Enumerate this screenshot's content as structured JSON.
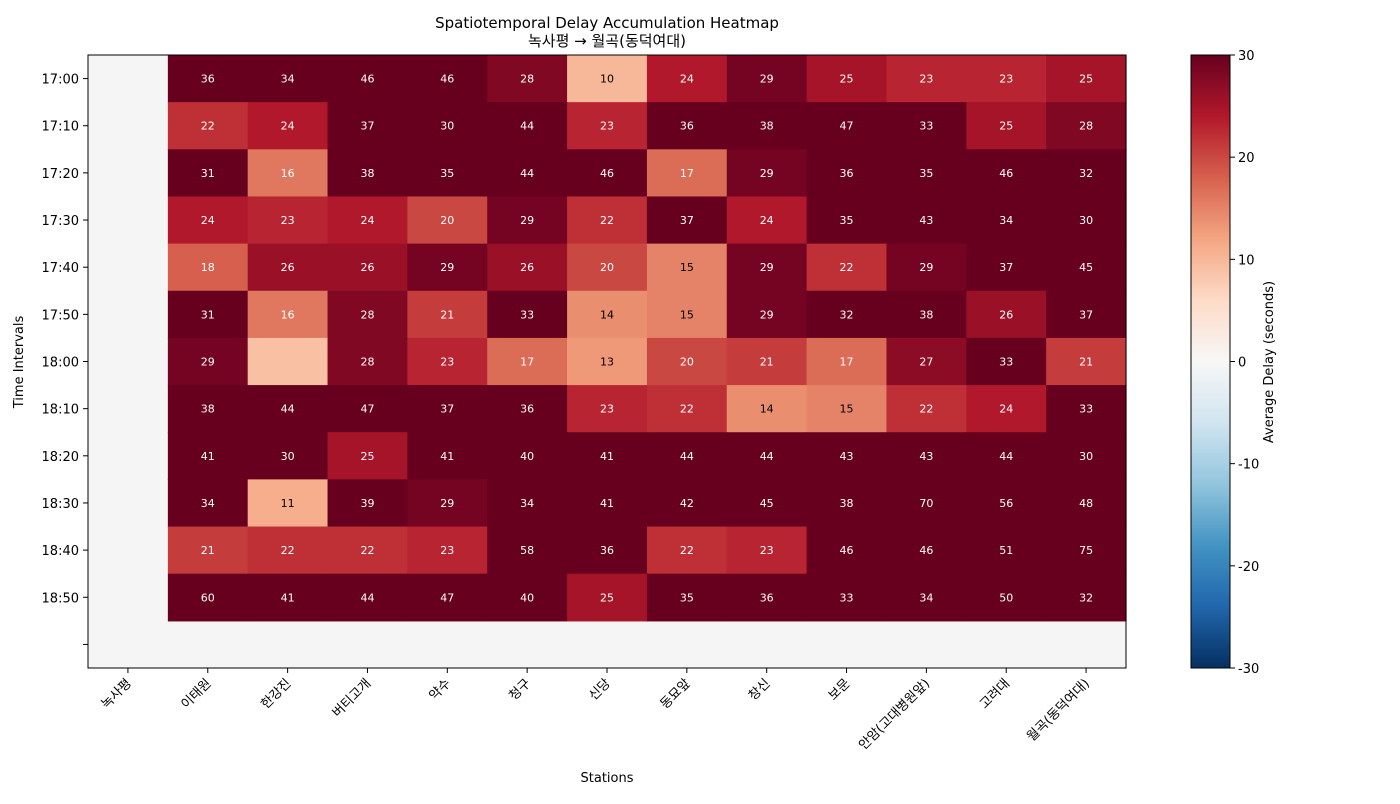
{
  "chart_data": {
    "type": "heatmap",
    "title": "Spatiotemporal Delay Accumulation Heatmap",
    "subtitle": "녹사평 → 월곡(동덕여대)",
    "xlabel": "Stations",
    "ylabel": "Time Intervals",
    "colorbar_label": "Average Delay (seconds)",
    "vmin": -30,
    "vmax": 30,
    "colorbar_ticks": [
      "30",
      "20",
      "10",
      "0",
      "-10",
      "-20",
      "-30"
    ],
    "colormap": "RdBu_r",
    "missing_color": "#f5f5f5",
    "x_labels": [
      "녹사평",
      "이태원",
      "한강진",
      "버티고개",
      "약수",
      "청구",
      "신당",
      "동묘앞",
      "창신",
      "보문",
      "안암(고대병원앞)",
      "고려대",
      "월곡(동덕여대)"
    ],
    "y_labels": [
      "17:00",
      "17:10",
      "17:20",
      "17:30",
      "17:40",
      "17:50",
      "18:00",
      "18:10",
      "18:20",
      "18:30",
      "18:40",
      "18:50",
      ""
    ],
    "values": [
      [
        null,
        36,
        34,
        46,
        46,
        28,
        10,
        24,
        29,
        25,
        23,
        23,
        25
      ],
      [
        null,
        22,
        24,
        37,
        30,
        44,
        23,
        36,
        38,
        47,
        33,
        25,
        28
      ],
      [
        null,
        31,
        16,
        38,
        35,
        44,
        46,
        17,
        29,
        36,
        35,
        46,
        32
      ],
      [
        null,
        24,
        23,
        24,
        20,
        29,
        22,
        37,
        24,
        35,
        43,
        34,
        30
      ],
      [
        null,
        18,
        26,
        26,
        29,
        26,
        20,
        15,
        29,
        22,
        29,
        37,
        45
      ],
      [
        null,
        31,
        16,
        28,
        21,
        33,
        14,
        15,
        29,
        32,
        38,
        26,
        37
      ],
      [
        null,
        29,
        9,
        28,
        23,
        17,
        13,
        20,
        21,
        17,
        27,
        33,
        21
      ],
      [
        null,
        38,
        44,
        47,
        37,
        36,
        23,
        22,
        14,
        15,
        22,
        24,
        33
      ],
      [
        null,
        41,
        30,
        25,
        41,
        40,
        41,
        44,
        44,
        43,
        43,
        44,
        30
      ],
      [
        null,
        34,
        11,
        39,
        29,
        34,
        41,
        42,
        45,
        38,
        70,
        56,
        48
      ],
      [
        null,
        21,
        22,
        22,
        23,
        58,
        36,
        22,
        23,
        46,
        46,
        51,
        75
      ],
      [
        null,
        60,
        41,
        44,
        47,
        40,
        25,
        35,
        36,
        33,
        34,
        50,
        32
      ],
      [
        null,
        null,
        null,
        null,
        null,
        null,
        null,
        null,
        null,
        null,
        null,
        null,
        null
      ]
    ],
    "cell_labels": [
      [
        "",
        "36",
        "34",
        "46",
        "46",
        "28",
        "10",
        "24",
        "29",
        "25",
        "23",
        "23",
        "25"
      ],
      [
        "",
        "22",
        "24",
        "37",
        "30",
        "44",
        "23",
        "36",
        "38",
        "47",
        "33",
        "25",
        "28"
      ],
      [
        "",
        "31",
        "16",
        "38",
        "35",
        "44",
        "46",
        "17",
        "29",
        "36",
        "35",
        "46",
        "32"
      ],
      [
        "",
        "24",
        "23",
        "24",
        "20",
        "29",
        "22",
        "37",
        "24",
        "35",
        "43",
        "34",
        "30"
      ],
      [
        "",
        "18",
        "26",
        "26",
        "29",
        "26",
        "20",
        "15",
        "29",
        "22",
        "29",
        "37",
        "45"
      ],
      [
        "",
        "31",
        "16",
        "28",
        "21",
        "33",
        "14",
        "15",
        "29",
        "32",
        "38",
        "26",
        "37"
      ],
      [
        "",
        "29",
        "",
        "28",
        "23",
        "17",
        "13",
        "20",
        "21",
        "17",
        "27",
        "33",
        "21"
      ],
      [
        "",
        "38",
        "44",
        "47",
        "37",
        "36",
        "23",
        "22",
        "14",
        "15",
        "22",
        "24",
        "33"
      ],
      [
        "",
        "41",
        "30",
        "25",
        "41",
        "40",
        "41",
        "44",
        "44",
        "43",
        "43",
        "44",
        "30"
      ],
      [
        "",
        "34",
        "11",
        "39",
        "29",
        "34",
        "41",
        "42",
        "45",
        "38",
        "70",
        "56",
        "48"
      ],
      [
        "",
        "21",
        "22",
        "22",
        "23",
        "58",
        "36",
        "22",
        "23",
        "46",
        "46",
        "51",
        "75"
      ],
      [
        "",
        "60",
        "41",
        "44",
        "47",
        "40",
        "25",
        "35",
        "36",
        "33",
        "34",
        "50",
        "32"
      ],
      [
        "",
        "",
        "",
        "",
        "",
        "",
        "",
        "",
        "",
        "",
        "",
        "",
        ""
      ]
    ],
    "grid": false
  }
}
